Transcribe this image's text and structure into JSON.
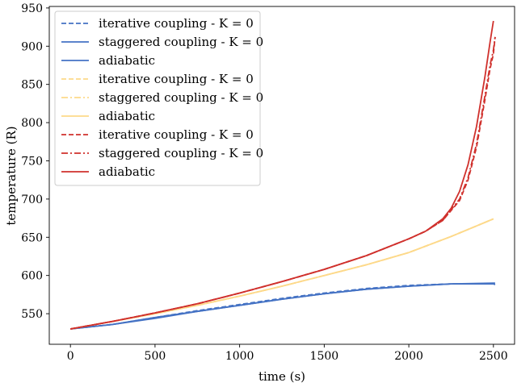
{
  "chart_data": {
    "type": "line",
    "xlabel": "time (s)",
    "ylabel": "temperature (R)",
    "xlim": [
      -125,
      2625
    ],
    "ylim": [
      510,
      952
    ],
    "xticks": [
      0,
      500,
      1000,
      1500,
      2000,
      2500
    ],
    "yticks": [
      550,
      600,
      650,
      700,
      750,
      800,
      850,
      900,
      950
    ],
    "xtick_labels": [
      "0",
      "500",
      "1000",
      "1500",
      "2000",
      "2500"
    ],
    "ytick_labels": [
      "550",
      "600",
      "650",
      "700",
      "750",
      "800",
      "850",
      "900",
      "950"
    ],
    "legend_position": "top-left",
    "grid": false,
    "series": [
      {
        "name": "iterative coupling - K = 0",
        "color": "#4472c4",
        "dash": "dashed",
        "x": [
          0,
          250,
          500,
          750,
          1000,
          1250,
          1500,
          1750,
          2000,
          2250,
          2500,
          2510
        ],
        "y": [
          530,
          536,
          545,
          554,
          562,
          570,
          577,
          583,
          587,
          589,
          589,
          589
        ]
      },
      {
        "name": "staggered coupling - K = 0",
        "color": "#4472c4",
        "dash": "solid",
        "x": [
          0,
          250,
          500,
          750,
          1000,
          1250,
          1500,
          1750,
          2000,
          2250,
          2500,
          2510
        ],
        "y": [
          530,
          536,
          545,
          553,
          561,
          569,
          576,
          582,
          586,
          589,
          589,
          588
        ]
      },
      {
        "name": "adiabatic",
        "color": "#4472c4",
        "dash": "solid",
        "x": [
          0,
          250,
          500,
          750,
          1000,
          1250,
          1500,
          1750,
          2000,
          2250,
          2500,
          2510
        ],
        "y": [
          530,
          536,
          544,
          553,
          561,
          569,
          576,
          582,
          586,
          589,
          590,
          590
        ]
      },
      {
        "name": "iterative coupling - K = 0",
        "color": "#fdd98a",
        "dash": "dashed",
        "x": [
          0,
          250,
          500,
          750,
          1000,
          1250,
          1500,
          1750,
          2000,
          2250,
          2500
        ],
        "y": [
          530,
          540,
          550,
          561,
          573,
          586,
          600,
          614,
          630,
          651,
          674
        ]
      },
      {
        "name": "staggered coupling - K = 0",
        "color": "#fdd98a",
        "dash": "dashdot",
        "x": [
          0,
          250,
          500,
          750,
          1000,
          1250,
          1500,
          1750,
          2000,
          2250,
          2500
        ],
        "y": [
          530,
          540,
          550,
          561,
          573,
          586,
          600,
          614,
          630,
          651,
          674
        ]
      },
      {
        "name": "adiabatic",
        "color": "#fdd98a",
        "dash": "solid",
        "x": [
          0,
          250,
          500,
          750,
          1000,
          1250,
          1500,
          1750,
          2000,
          2250,
          2500
        ],
        "y": [
          530,
          540,
          550,
          561,
          573,
          586,
          600,
          614,
          630,
          651,
          674
        ]
      },
      {
        "name": "iterative coupling - K = 0",
        "color": "#d0312d",
        "dash": "dashed",
        "x": [
          0,
          250,
          500,
          750,
          1000,
          1250,
          1500,
          1750,
          2000,
          2100,
          2200,
          2300,
          2350,
          2400,
          2450,
          2480,
          2500,
          2510
        ],
        "y": [
          530,
          540,
          551,
          563,
          577,
          592,
          608,
          626,
          648,
          658,
          672,
          698,
          725,
          768,
          830,
          870,
          890,
          912
        ]
      },
      {
        "name": "staggered coupling - K = 0",
        "color": "#d0312d",
        "dash": "dashdot",
        "x": [
          0,
          250,
          500,
          750,
          1000,
          1250,
          1500,
          1750,
          2000,
          2100,
          2200,
          2300,
          2350,
          2400,
          2450,
          2480,
          2500,
          2510
        ],
        "y": [
          530,
          540,
          551,
          563,
          577,
          592,
          608,
          626,
          648,
          658,
          672,
          700,
          728,
          772,
          835,
          875,
          895,
          912
        ]
      },
      {
        "name": "adiabatic",
        "color": "#d0312d",
        "dash": "solid",
        "x": [
          0,
          250,
          500,
          750,
          1000,
          1250,
          1500,
          1750,
          2000,
          2100,
          2200,
          2250,
          2300,
          2350,
          2400,
          2450,
          2480,
          2500
        ],
        "y": [
          530,
          540,
          551,
          563,
          577,
          592,
          608,
          626,
          648,
          658,
          674,
          688,
          710,
          745,
          795,
          860,
          905,
          933
        ]
      }
    ]
  }
}
